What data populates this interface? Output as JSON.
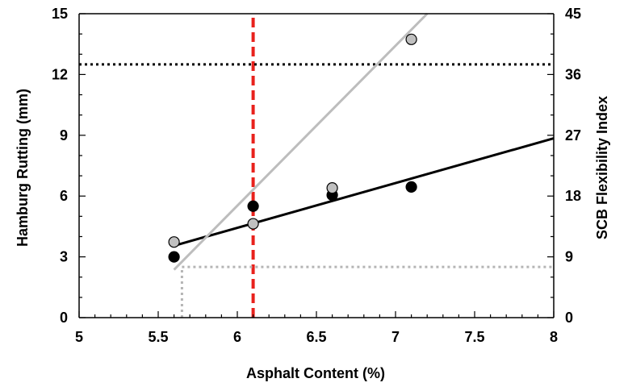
{
  "chart_data": {
    "type": "scatter",
    "title": "",
    "xlabel": "Asphalt Content (%)",
    "ylabel": "Hamburg Rutting (mm)",
    "y2label": "SCB Flexibility Index",
    "xlim": [
      5,
      8
    ],
    "ylim": [
      0,
      15
    ],
    "y2lim": [
      0,
      45
    ],
    "x_ticks": [
      "5",
      "5.5",
      "6",
      "6.5",
      "7",
      "7.5",
      "8"
    ],
    "y_ticks": [
      "0",
      "3",
      "6",
      "9",
      "12",
      "15"
    ],
    "y2_ticks": [
      "0",
      "9",
      "18",
      "27",
      "36",
      "45"
    ],
    "grid": false,
    "legend": "none",
    "series": [
      {
        "axis": "left",
        "color": "#000000",
        "points": [
          {
            "x": 5.6,
            "y": 3.0
          },
          {
            "x": 6.1,
            "y": 5.5
          },
          {
            "x": 6.6,
            "y": 6.05
          },
          {
            "x": 7.1,
            "y": 6.45
          }
        ],
        "trendline": {
          "x": [
            5.6,
            8.0
          ],
          "y": [
            3.55,
            8.85
          ]
        }
      },
      {
        "axis": "right",
        "color": "#c0c0c0",
        "points": [
          {
            "x": 5.6,
            "y": 11.2
          },
          {
            "x": 6.1,
            "y": 13.9
          },
          {
            "x": 6.6,
            "y": 19.2
          },
          {
            "x": 7.1,
            "y": 41.2
          }
        ],
        "trendline": {
          "x": [
            5.6,
            7.2
          ],
          "y": [
            7.1,
            45.0
          ]
        }
      }
    ],
    "reference_lines": [
      {
        "kind": "vertical",
        "x": 6.1,
        "color": "#e8211c",
        "style": "dashed"
      },
      {
        "kind": "horizontal",
        "y": 12.5,
        "axis": "left",
        "color": "#000000",
        "style": "dotted"
      },
      {
        "kind": "horizontal",
        "y": 2.5,
        "axis": "left",
        "from_x": 5.65,
        "color": "#b5b5b5",
        "style": "dotted"
      },
      {
        "kind": "vertical",
        "x": 5.65,
        "to_y": 2.5,
        "color": "#b5b5b5",
        "style": "dotted"
      }
    ]
  }
}
